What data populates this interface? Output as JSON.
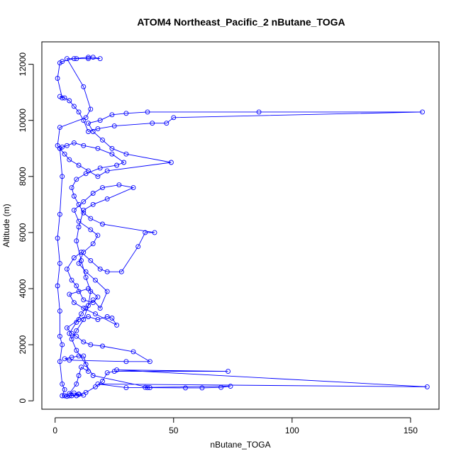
{
  "colors": {
    "series": "#0000ff",
    "axis": "#000000",
    "background": "#ffffff"
  },
  "chart_data": {
    "type": "line",
    "markers": "open-circle",
    "title": "ATOM4 Northeast_Pacific_2 nButane_TOGA",
    "xlabel": "nButane_TOGA",
    "ylabel": "Altitude (m)",
    "xlim": [
      -5.6,
      162.0
    ],
    "ylim": [
      -300,
      12800
    ],
    "xticks": [
      0,
      50,
      100,
      150
    ],
    "yticks": [
      0,
      2000,
      4000,
      6000,
      8000,
      10000,
      12000
    ],
    "grid": false,
    "series": [
      {
        "color": "#0000ff",
        "points": [
          [
            7,
            180
          ],
          [
            9,
            180
          ],
          [
            12,
            200
          ],
          [
            10,
            240
          ],
          [
            8,
            280
          ],
          [
            6,
            260
          ],
          [
            9,
            600
          ],
          [
            10,
            900
          ],
          [
            11,
            1200
          ],
          [
            14,
            1050
          ],
          [
            12,
            1600
          ],
          [
            10,
            1600
          ],
          [
            7,
            1550
          ],
          [
            4,
            1500
          ],
          [
            6,
            1450
          ],
          [
            30,
            1400
          ],
          [
            40,
            1400
          ],
          [
            33,
            1750
          ],
          [
            20,
            1950
          ],
          [
            15,
            2000
          ],
          [
            12,
            2100
          ],
          [
            9,
            2300
          ],
          [
            7,
            2400
          ],
          [
            5,
            2600
          ],
          [
            10,
            2900
          ],
          [
            14,
            3000
          ],
          [
            18,
            2900
          ],
          [
            22,
            3000
          ],
          [
            24,
            2950
          ],
          [
            26,
            2700
          ],
          [
            17,
            3100
          ],
          [
            12,
            3300
          ],
          [
            8,
            3500
          ],
          [
            6,
            3800
          ],
          [
            10,
            3900
          ],
          [
            14,
            4000
          ],
          [
            18,
            3700
          ],
          [
            16,
            3500
          ],
          [
            12,
            3600
          ],
          [
            9,
            4100
          ],
          [
            7,
            4300
          ],
          [
            5,
            4700
          ],
          [
            8,
            5100
          ],
          [
            11,
            5300
          ],
          [
            15,
            5000
          ],
          [
            19,
            4700
          ],
          [
            22,
            4600
          ],
          [
            28,
            4600
          ],
          [
            35,
            5500
          ],
          [
            38,
            6000
          ],
          [
            42,
            6000
          ],
          [
            20,
            6300
          ],
          [
            15,
            6500
          ],
          [
            12,
            6700
          ],
          [
            10,
            7000
          ],
          [
            8,
            7300
          ],
          [
            7,
            7600
          ],
          [
            9,
            7900
          ],
          [
            13,
            8100
          ],
          [
            19,
            8300
          ],
          [
            26,
            8400
          ],
          [
            29,
            8500
          ],
          [
            24,
            8800
          ],
          [
            18,
            9000
          ],
          [
            12,
            9100
          ],
          [
            8,
            9200
          ],
          [
            5,
            9100
          ],
          [
            3,
            9050
          ],
          [
            2,
            9000
          ],
          [
            4,
            8800
          ],
          [
            6,
            8600
          ],
          [
            10,
            8400
          ],
          [
            14,
            8200
          ],
          [
            18,
            8000
          ],
          [
            22,
            8200
          ],
          [
            49,
            8500
          ],
          [
            30,
            8800
          ],
          [
            24,
            9000
          ],
          [
            20,
            9300
          ],
          [
            16,
            9600
          ],
          [
            14,
            9900
          ],
          [
            19,
            10000
          ],
          [
            24,
            10200
          ],
          [
            30,
            10250
          ],
          [
            39,
            10300
          ],
          [
            86,
            10300
          ],
          [
            155,
            10300
          ],
          [
            50,
            10100
          ],
          [
            47,
            9900
          ],
          [
            41,
            9900
          ],
          [
            25,
            9800
          ],
          [
            18,
            9700
          ],
          [
            14,
            9600
          ],
          [
            12,
            10000
          ],
          [
            10,
            10300
          ],
          [
            8,
            10500
          ],
          [
            6,
            10700
          ],
          [
            4,
            10800
          ],
          [
            2,
            10850
          ],
          [
            3,
            10800
          ],
          [
            1,
            11500
          ],
          [
            2,
            12050
          ],
          [
            3,
            12100
          ],
          [
            8,
            12200
          ],
          [
            14,
            12250
          ],
          [
            16,
            12250
          ],
          [
            19,
            12200
          ],
          [
            14,
            12200
          ],
          [
            9,
            12200
          ],
          [
            5,
            12200
          ],
          [
            12,
            11200
          ],
          [
            15,
            10400
          ],
          [
            13,
            10100
          ],
          [
            2,
            9750
          ],
          [
            1,
            9100
          ],
          [
            2,
            9000
          ],
          [
            3,
            8000
          ],
          [
            2,
            6650
          ],
          [
            1,
            5800
          ],
          [
            2,
            4900
          ],
          [
            1,
            4100
          ],
          [
            2,
            3200
          ],
          [
            2,
            2300
          ],
          [
            3,
            2000
          ],
          [
            2,
            1400
          ],
          [
            3,
            600
          ],
          [
            4,
            400
          ],
          [
            3,
            180
          ],
          [
            4,
            180
          ],
          [
            5,
            160
          ],
          [
            6,
            180
          ],
          [
            10,
            230
          ],
          [
            13,
            300
          ],
          [
            17,
            500
          ],
          [
            20,
            700
          ],
          [
            22,
            1000
          ],
          [
            25,
            1050
          ],
          [
            73,
            1050
          ],
          [
            26,
            1100
          ],
          [
            157,
            500
          ],
          [
            18,
            600
          ],
          [
            30,
            470
          ],
          [
            39,
            470
          ],
          [
            55,
            460
          ],
          [
            62,
            460
          ],
          [
            70,
            480
          ],
          [
            74,
            520
          ],
          [
            38,
            480
          ],
          [
            40,
            470
          ],
          [
            16,
            900
          ],
          [
            13,
            1300
          ],
          [
            9,
            1800
          ],
          [
            6,
            2400
          ],
          [
            9,
            2800
          ],
          [
            11,
            3100
          ],
          [
            13,
            3300
          ],
          [
            16,
            3600
          ],
          [
            19,
            3300
          ],
          [
            22,
            3900
          ],
          [
            17,
            4300
          ],
          [
            13,
            4600
          ],
          [
            10,
            4900
          ],
          [
            12,
            5300
          ],
          [
            16,
            5600
          ],
          [
            18,
            5900
          ],
          [
            15,
            6100
          ],
          [
            10,
            6400
          ],
          [
            8,
            6800
          ],
          [
            12,
            7100
          ],
          [
            16,
            7400
          ],
          [
            20,
            7600
          ],
          [
            27,
            7700
          ],
          [
            33,
            7600
          ],
          [
            22,
            7200
          ],
          [
            16,
            7000
          ],
          [
            12,
            6800
          ],
          [
            10,
            6200
          ],
          [
            9,
            5700
          ],
          [
            11,
            5000
          ],
          [
            13,
            4400
          ],
          [
            15,
            3900
          ],
          [
            14,
            3400
          ],
          [
            12,
            2900
          ],
          [
            9,
            2500
          ],
          [
            7,
            2200
          ]
        ]
      }
    ]
  }
}
